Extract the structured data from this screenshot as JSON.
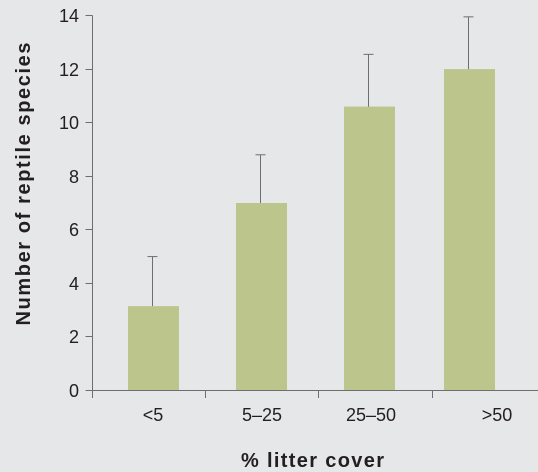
{
  "chart_data": {
    "type": "bar",
    "categories": [
      "<5",
      "5–25",
      "25–50",
      ">50"
    ],
    "values": [
      3.15,
      7.0,
      10.6,
      12.0
    ],
    "error_upper": [
      1.85,
      1.8,
      1.95,
      1.95
    ],
    "xlabel": "% litter cover",
    "ylabel": "Number of reptile species",
    "ylim": [
      0,
      14
    ],
    "yticks": [
      0,
      2,
      4,
      6,
      8,
      10,
      12,
      14
    ],
    "grid": false,
    "colors": {
      "bar": "#bcc58c",
      "background": "#e6e7e8",
      "axis": "#6d6e71",
      "error_bar": "#6d6e71",
      "text": "#231f20"
    }
  }
}
